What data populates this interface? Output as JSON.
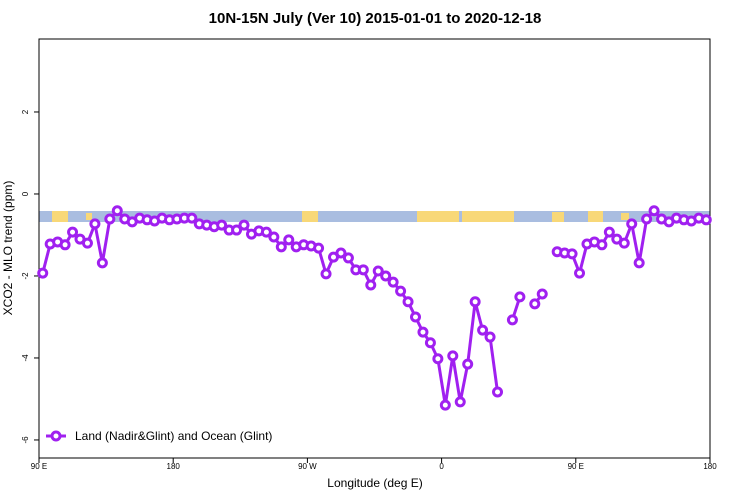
{
  "chart_data": {
    "type": "line",
    "title": "10N-15N July (Ver 10)   2015-01-01 to 2020-12-18",
    "x_label": "Longitude (deg E)",
    "y_label": "XCO2 - MLO trend (ppm)",
    "x": [
      92.5,
      97.5,
      102.5,
      107.5,
      112.5,
      117.5,
      122.5,
      127.5,
      132.5,
      137.5,
      142.5,
      147.5,
      152.5,
      157.5,
      162.5,
      167.5,
      172.5,
      177.5,
      182.5,
      187.5,
      192.5,
      197.5,
      202.5,
      207.5,
      212.5,
      217.5,
      222.5,
      227.5,
      232.5,
      237.5,
      242.5,
      247.5,
      252.5,
      257.5,
      262.5,
      267.5,
      272.5,
      277.5,
      282.5,
      287.5,
      292.5,
      297.5,
      302.5,
      307.5,
      312.5,
      317.5,
      322.5,
      327.5,
      332.5,
      337.5,
      342.5,
      347.5,
      352.5,
      357.5,
      362.5,
      367.5,
      372.5,
      377.5,
      382.5,
      387.5,
      392.5,
      397.5,
      402.5,
      407.5,
      412.5,
      417.5,
      422.5,
      427.5,
      432.5,
      437.5,
      442.5,
      447.5,
      452.5,
      457.5,
      462.5,
      467.5,
      472.5,
      477.5,
      482.5,
      487.5,
      492.5,
      497.5,
      502.5,
      507.5,
      512.5,
      517.5,
      522.5,
      527.5,
      532.5,
      537.5
    ],
    "series": [
      {
        "name": "Land (Nadir&Glint) and Ocean (Glint)",
        "color": "#a020f0",
        "values": [
          -1.93,
          -1.22,
          -1.17,
          -1.24,
          -0.93,
          -1.1,
          -1.2,
          -0.73,
          -1.68,
          -0.61,
          -0.41,
          -0.61,
          -0.68,
          -0.59,
          -0.63,
          -0.66,
          -0.59,
          -0.63,
          -0.61,
          -0.59,
          -0.59,
          -0.73,
          -0.76,
          -0.8,
          -0.76,
          -0.88,
          -0.88,
          -0.76,
          -0.98,
          -0.9,
          -0.93,
          -1.05,
          -1.29,
          -1.12,
          -1.29,
          -1.24,
          -1.27,
          -1.32,
          -1.95,
          -1.54,
          -1.44,
          -1.56,
          -1.85,
          -1.85,
          -2.22,
          -1.88,
          -2.0,
          -2.15,
          -2.37,
          -2.63,
          -3.0,
          -3.37,
          -3.63,
          -4.02,
          -5.15,
          -3.95,
          -5.07,
          -4.15,
          -2.63,
          -3.32,
          -3.49,
          -4.83,
          null,
          -3.07,
          -2.51,
          null,
          -2.68,
          -2.44,
          null,
          -1.41,
          -1.44,
          -1.46,
          -1.93,
          -1.22,
          -1.17,
          -1.24,
          -0.93,
          -1.1,
          -1.2,
          -0.73,
          -1.68,
          -0.61,
          -0.41,
          -0.61,
          -0.68,
          -0.59,
          -0.63,
          -0.66,
          -0.59,
          -0.63
        ]
      }
    ],
    "xlim": [
      90,
      540
    ],
    "xticks": [
      {
        "value": 90,
        "label": "90 E"
      },
      180,
      {
        "value": 270,
        "label": "90 W"
      },
      {
        "value": 360,
        "label": "0"
      },
      {
        "value": 450,
        "label": "90 E"
      },
      {
        "value": 540,
        "label": "180"
      }
    ],
    "ylim": [
      -6.44,
      3.78
    ],
    "yticks": [
      -6,
      -4,
      -2,
      0,
      2
    ],
    "legend": "bottomleft"
  }
}
